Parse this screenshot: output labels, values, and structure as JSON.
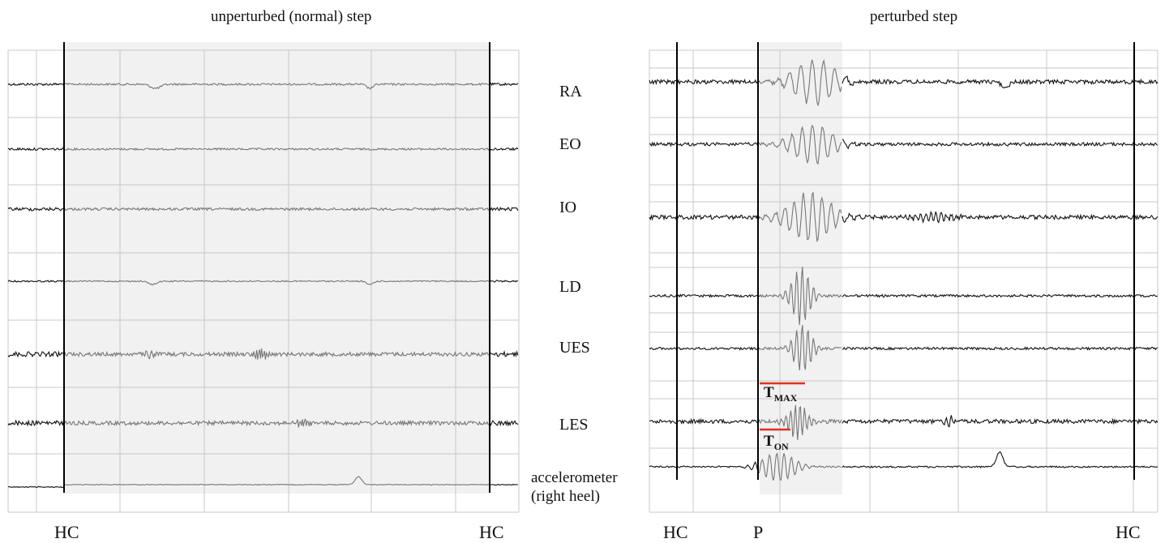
{
  "panels": {
    "left": {
      "title": "unperturbed (normal) step",
      "markers": [
        "HC",
        "HC"
      ]
    },
    "right": {
      "title": "perturbed step",
      "markers": [
        "HC",
        "P",
        "HC"
      ]
    }
  },
  "channels": [
    "RA",
    "EO",
    "IO",
    "LD",
    "UES",
    "LES"
  ],
  "accelerometer": {
    "line1": "accelerometer",
    "line2": "(right heel)"
  },
  "timing": {
    "t_max_main": "T",
    "t_max_sub": "MAX",
    "t_on_main": "T",
    "t_on_sub": "ON"
  },
  "colors": {
    "trace": "#111111",
    "trace_shaded": "#777777",
    "shade": "#f1f1f1",
    "grid": "#c8c8c8",
    "event_line": "#000000",
    "timing_line": "#e23020"
  }
}
